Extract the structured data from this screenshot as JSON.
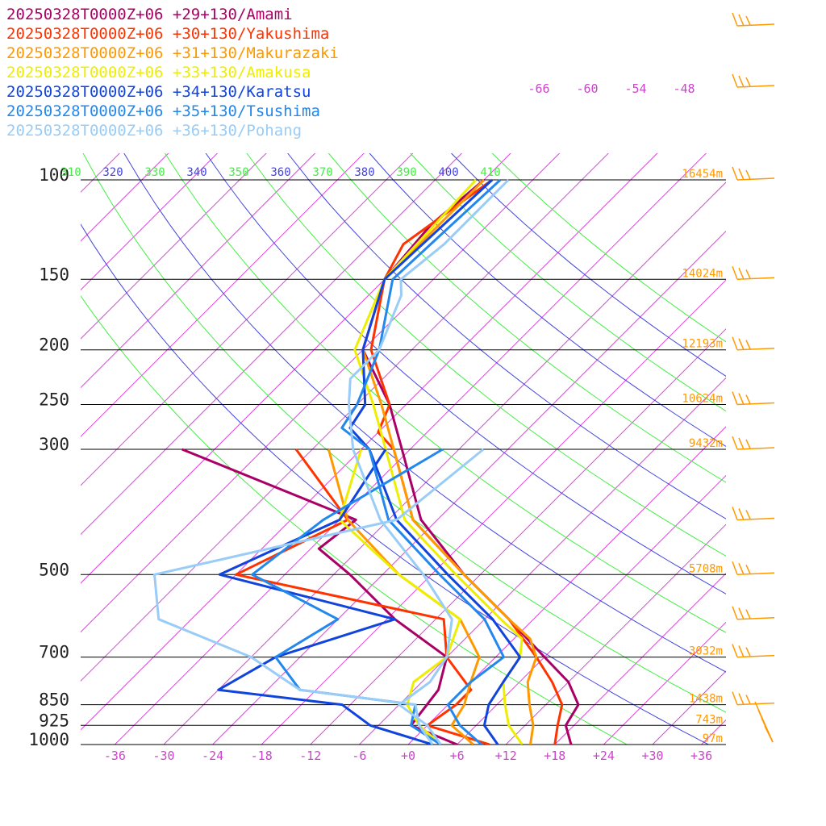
{
  "chart_data": {
    "type": "line",
    "title": "",
    "pressure_levels": [
      100,
      150,
      200,
      250,
      300,
      500,
      700,
      850,
      925,
      1000
    ],
    "pressure_labels": [
      "100",
      "150",
      "200",
      "250",
      "300",
      "500",
      "700",
      "850",
      "925",
      "1000"
    ],
    "height_labels": [
      {
        "p": 100,
        "text": "16454m"
      },
      {
        "p": 150,
        "text": "14024m"
      },
      {
        "p": 200,
        "text": "12193m"
      },
      {
        "p": 250,
        "text": "10624m"
      },
      {
        "p": 300,
        "text": "9432m"
      },
      {
        "p": 500,
        "text": "5708m"
      },
      {
        "p": 700,
        "text": "3032m"
      },
      {
        "p": 850,
        "text": "1438m"
      },
      {
        "p": 925,
        "text": "743m"
      },
      {
        "p": 1000,
        "text": "97m"
      }
    ],
    "temperature_ticks": [
      -36,
      -30,
      -24,
      -18,
      -12,
      -6,
      0,
      6,
      12,
      18,
      24,
      30,
      36
    ],
    "temperature_tick_labels": [
      "-36",
      "-30",
      "-24",
      "-18",
      "-12",
      "-6",
      "+0",
      "+6",
      "+12",
      "+18",
      "+24",
      "+30",
      "+36"
    ],
    "upper_temperature_labels": [
      "-66",
      "-60",
      "-54",
      "-48"
    ],
    "theta_labels": [
      "310",
      "320",
      "330",
      "340",
      "350",
      "360",
      "370",
      "380",
      "390",
      "400",
      "410"
    ],
    "series": [
      {
        "name": "20250328T0000Z+06 +29+130/Amami",
        "color": "#aa0066",
        "temperature": [
          [
            100,
            -60
          ],
          [
            120,
            -61
          ],
          [
            150,
            -60
          ],
          [
            200,
            -54
          ],
          [
            250,
            -44
          ],
          [
            300,
            -37
          ],
          [
            400,
            -26
          ],
          [
            500,
            -14
          ],
          [
            600,
            -3
          ],
          [
            700,
            6
          ],
          [
            775,
            12
          ],
          [
            850,
            16
          ],
          [
            925,
            17
          ],
          [
            1000,
            20
          ]
        ],
        "dewpoint": [
          [
            300,
            -64
          ],
          [
            400,
            -34
          ],
          [
            450,
            -35
          ],
          [
            500,
            -28
          ],
          [
            600,
            -17
          ],
          [
            700,
            -6
          ],
          [
            800,
            -3
          ],
          [
            925,
            -2
          ],
          [
            1000,
            6
          ]
        ]
      },
      {
        "name": "20250328T0000Z+06 +30+130/Yakushima",
        "color": "#ff3300",
        "temperature": [
          [
            100,
            -59
          ],
          [
            130,
            -62
          ],
          [
            150,
            -60
          ],
          [
            200,
            -53
          ],
          [
            250,
            -44
          ],
          [
            280,
            -42
          ],
          [
            300,
            -38
          ],
          [
            400,
            -27
          ],
          [
            500,
            -14
          ],
          [
            600,
            -3
          ],
          [
            700,
            5
          ],
          [
            775,
            10
          ],
          [
            850,
            14
          ],
          [
            925,
            16
          ],
          [
            1000,
            18
          ]
        ],
        "dewpoint": [
          [
            300,
            -50
          ],
          [
            400,
            -35
          ],
          [
            500,
            -42
          ],
          [
            600,
            -11
          ],
          [
            700,
            -6
          ],
          [
            800,
            1
          ],
          [
            850,
            1
          ],
          [
            925,
            0
          ],
          [
            1000,
            10
          ]
        ]
      },
      {
        "name": "20250328T0000Z+06 +31+130/Makurazaki",
        "color": "#ff9900",
        "temperature": [
          [
            100,
            -60
          ],
          [
            150,
            -60
          ],
          [
            200,
            -54
          ],
          [
            250,
            -45
          ],
          [
            300,
            -38
          ],
          [
            400,
            -27
          ],
          [
            500,
            -14
          ],
          [
            600,
            -3
          ],
          [
            650,
            2
          ],
          [
            700,
            5
          ],
          [
            775,
            7
          ],
          [
            850,
            10
          ],
          [
            925,
            13
          ],
          [
            1000,
            15
          ]
        ],
        "dewpoint": [
          [
            300,
            -46
          ],
          [
            400,
            -35
          ],
          [
            500,
            -22
          ],
          [
            600,
            -9
          ],
          [
            700,
            -2
          ],
          [
            775,
            0
          ],
          [
            850,
            2
          ],
          [
            925,
            3
          ],
          [
            1000,
            8
          ]
        ]
      },
      {
        "name": "20250328T0000Z+06 +33+130/Amakusa",
        "color": "#eeee00",
        "temperature": [
          [
            100,
            -61
          ],
          [
            150,
            -60
          ],
          [
            200,
            -55
          ],
          [
            250,
            -46
          ],
          [
            300,
            -39
          ],
          [
            400,
            -28
          ],
          [
            500,
            -15
          ],
          [
            600,
            -4
          ],
          [
            650,
            1
          ],
          [
            700,
            3
          ],
          [
            775,
            4
          ],
          [
            850,
            7
          ],
          [
            925,
            10
          ],
          [
            1000,
            14
          ]
        ],
        "dewpoint": [
          [
            300,
            -42
          ],
          [
            400,
            -36
          ],
          [
            500,
            -22
          ],
          [
            600,
            -9
          ],
          [
            700,
            -6
          ],
          [
            775,
            -7
          ],
          [
            850,
            -5
          ],
          [
            925,
            -1
          ],
          [
            1000,
            4
          ]
        ]
      },
      {
        "name": "20250328T0000Z+06 +34+130/Karatsu",
        "color": "#1144dd",
        "temperature": [
          [
            100,
            -59
          ],
          [
            150,
            -60
          ],
          [
            200,
            -54
          ],
          [
            250,
            -47
          ],
          [
            275,
            -46
          ],
          [
            300,
            -41
          ],
          [
            400,
            -29
          ],
          [
            500,
            -16
          ],
          [
            600,
            -5
          ],
          [
            700,
            3
          ],
          [
            775,
            4
          ],
          [
            850,
            5
          ],
          [
            925,
            7
          ],
          [
            1000,
            11
          ]
        ],
        "dewpoint": [
          [
            300,
            -39
          ],
          [
            400,
            -36
          ],
          [
            500,
            -44
          ],
          [
            600,
            -17
          ],
          [
            700,
            -27
          ],
          [
            800,
            -30
          ],
          [
            850,
            -13
          ],
          [
            925,
            -7
          ],
          [
            1000,
            3
          ]
        ]
      },
      {
        "name": "20250328T0000Z+06 +35+130/Tsushima",
        "color": "#2288ee",
        "temperature": [
          [
            100,
            -58
          ],
          [
            150,
            -59
          ],
          [
            200,
            -52
          ],
          [
            250,
            -48
          ],
          [
            275,
            -47
          ],
          [
            300,
            -41
          ],
          [
            400,
            -30
          ],
          [
            500,
            -17
          ],
          [
            600,
            -6
          ],
          [
            700,
            1
          ],
          [
            775,
            0
          ],
          [
            850,
            0
          ],
          [
            925,
            4
          ],
          [
            1000,
            9
          ]
        ],
        "dewpoint": [
          [
            300,
            -32
          ],
          [
            400,
            -38
          ],
          [
            500,
            -40
          ],
          [
            600,
            -24
          ],
          [
            700,
            -27
          ],
          [
            800,
            -20
          ],
          [
            850,
            -4
          ],
          [
            925,
            -2
          ],
          [
            1000,
            4
          ]
        ]
      },
      {
        "name": "20250328T0000Z+06 +36+130/Pohang",
        "color": "#99ccf6",
        "temperature": [
          [
            100,
            -57
          ],
          [
            130,
            -57
          ],
          [
            150,
            -58
          ],
          [
            160,
            -56
          ],
          [
            200,
            -52
          ],
          [
            225,
            -52
          ],
          [
            250,
            -49
          ],
          [
            300,
            -43
          ],
          [
            400,
            -31
          ],
          [
            500,
            -19
          ],
          [
            600,
            -10
          ],
          [
            700,
            -6
          ],
          [
            775,
            -5
          ],
          [
            850,
            -6
          ],
          [
            925,
            0
          ],
          [
            1000,
            4
          ]
        ],
        "dewpoint": [
          [
            300,
            -27
          ],
          [
            400,
            -29
          ],
          [
            500,
            -52
          ],
          [
            600,
            -46
          ],
          [
            700,
            -30
          ],
          [
            800,
            -20
          ],
          [
            850,
            -4
          ],
          [
            925,
            -1
          ],
          [
            1000,
            3
          ]
        ]
      }
    ],
    "wind_barb_levels": [
      100,
      150,
      200,
      250,
      300,
      400,
      500,
      600,
      700,
      850
    ]
  }
}
